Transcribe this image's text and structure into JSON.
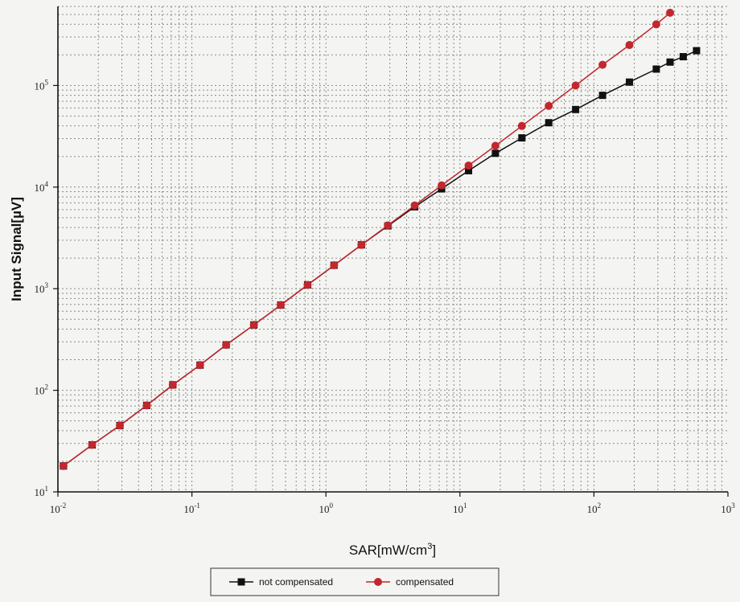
{
  "chart_data": {
    "type": "line",
    "xlabel": "SAR[mW/cm3]",
    "ylabel": "Input Signal[µV]",
    "x_scale": "log",
    "y_scale": "log",
    "xlim": [
      0.01,
      1000
    ],
    "ylim": [
      10,
      600000
    ],
    "x_ticks": [
      {
        "base": "10",
        "exp": "-2"
      },
      {
        "base": "10",
        "exp": "-1"
      },
      {
        "base": "10",
        "exp": "0"
      },
      {
        "base": "10",
        "exp": "1"
      },
      {
        "base": "10",
        "exp": "2"
      },
      {
        "base": "10",
        "exp": "3"
      }
    ],
    "y_ticks": [
      {
        "base": "10",
        "exp": "1"
      },
      {
        "base": "10",
        "exp": "2"
      },
      {
        "base": "10",
        "exp": "3"
      },
      {
        "base": "10",
        "exp": "4"
      },
      {
        "base": "10",
        "exp": "5"
      }
    ],
    "grid": true,
    "legend_position": "bottom",
    "series": [
      {
        "name": "not compensated",
        "color": "#111111",
        "marker": "square",
        "points": [
          [
            0.011,
            18
          ],
          [
            0.018,
            29
          ],
          [
            0.029,
            45
          ],
          [
            0.046,
            71
          ],
          [
            0.072,
            113
          ],
          [
            0.115,
            177
          ],
          [
            0.18,
            280
          ],
          [
            0.29,
            440
          ],
          [
            0.46,
            690
          ],
          [
            0.73,
            1090
          ],
          [
            1.15,
            1700
          ],
          [
            1.84,
            2700
          ],
          [
            2.9,
            4150
          ],
          [
            4.6,
            6400
          ],
          [
            7.3,
            9600
          ],
          [
            11.6,
            14500
          ],
          [
            18.4,
            21500
          ],
          [
            29,
            30500
          ],
          [
            46,
            43000
          ],
          [
            73,
            58000
          ],
          [
            116,
            80000
          ],
          [
            184,
            108000
          ],
          [
            292,
            145000
          ],
          [
            370,
            170000
          ],
          [
            464,
            192000
          ],
          [
            583,
            220000
          ]
        ]
      },
      {
        "name": "compensated",
        "color": "#c1272d",
        "marker": "circle",
        "points": [
          [
            0.011,
            18
          ],
          [
            0.018,
            29
          ],
          [
            0.029,
            45
          ],
          [
            0.046,
            71
          ],
          [
            0.072,
            113
          ],
          [
            0.115,
            177
          ],
          [
            0.18,
            280
          ],
          [
            0.29,
            440
          ],
          [
            0.46,
            690
          ],
          [
            0.73,
            1090
          ],
          [
            1.15,
            1700
          ],
          [
            1.84,
            2700
          ],
          [
            2.9,
            4200
          ],
          [
            4.6,
            6600
          ],
          [
            7.3,
            10400
          ],
          [
            11.6,
            16300
          ],
          [
            18.4,
            25500
          ],
          [
            29,
            40000
          ],
          [
            46,
            63000
          ],
          [
            73,
            100000
          ],
          [
            116,
            160000
          ],
          [
            184,
            250000
          ],
          [
            292,
            400000
          ],
          [
            370,
            520000
          ]
        ]
      }
    ]
  },
  "colors": {
    "background": "#f4f4f2",
    "grid": "#8a8a8a",
    "axis": "#111111"
  }
}
